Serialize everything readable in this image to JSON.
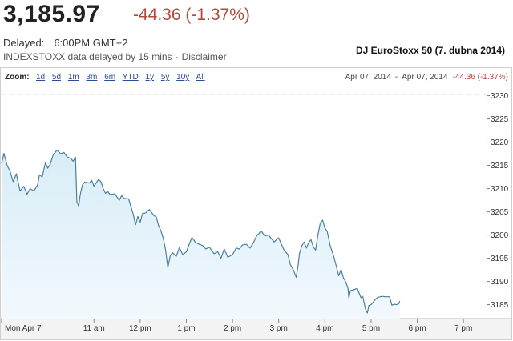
{
  "header": {
    "price": "3,185.97",
    "change": "-44.36 (-1.37%)",
    "delayed_label": "Delayed:",
    "delayed_time": "6:00PM GMT+2",
    "data_source": "INDEXSTOXX data delayed by 15 mins",
    "dash": "-",
    "disclaimer_link": "Disclaimer"
  },
  "chart_title": "DJ EuroStoxx 50 (7. dubna 2014)",
  "zoom": {
    "label": "Zoom:",
    "options": [
      "1d",
      "5d",
      "1m",
      "3m",
      "6m",
      "YTD",
      "1y",
      "5y",
      "10y",
      "All"
    ]
  },
  "range": {
    "start": "Apr 07, 2014",
    "separator": "-",
    "end": "Apr 07, 2014",
    "change": "-44.36 (-1.37%)"
  },
  "colors": {
    "line": "#4a7f9d",
    "area_top": "#d8ecf7",
    "area_bottom": "#f2f9fd",
    "reference_line": "#555555"
  },
  "chart_data": {
    "type": "area",
    "x_unit": "hour",
    "xlim": [
      9.0,
      19.5
    ],
    "ylim": [
      3182,
      3232
    ],
    "y_ticks": [
      3185,
      3190,
      3195,
      3200,
      3205,
      3210,
      3215,
      3220,
      3225,
      3230
    ],
    "x_ticks": [
      {
        "x": 9.0,
        "label": "Mon Apr 7"
      },
      {
        "x": 11.0,
        "label": "11 am"
      },
      {
        "x": 12.0,
        "label": "12 pm"
      },
      {
        "x": 13.0,
        "label": "1 pm"
      },
      {
        "x": 14.0,
        "label": "2 pm"
      },
      {
        "x": 15.0,
        "label": "3 pm"
      },
      {
        "x": 16.0,
        "label": "4 pm"
      },
      {
        "x": 17.0,
        "label": "5 pm"
      },
      {
        "x": 18.0,
        "label": "6 pm"
      },
      {
        "x": 19.0,
        "label": "7 pm"
      }
    ],
    "reference_line": 3230.33,
    "grid": false,
    "points": [
      [
        9.0,
        3215.4
      ],
      [
        9.05,
        3217.6
      ],
      [
        9.12,
        3215.0
      ],
      [
        9.18,
        3213.8
      ],
      [
        9.25,
        3211.5
      ],
      [
        9.32,
        3213.2
      ],
      [
        9.4,
        3209.5
      ],
      [
        9.48,
        3210.5
      ],
      [
        9.55,
        3208.8
      ],
      [
        9.62,
        3210.0
      ],
      [
        9.7,
        3209.5
      ],
      [
        9.78,
        3210.8
      ],
      [
        9.82,
        3213.0
      ],
      [
        9.88,
        3212.5
      ],
      [
        9.95,
        3215.6
      ],
      [
        10.0,
        3214.4
      ],
      [
        10.05,
        3215.2
      ],
      [
        10.12,
        3217.3
      ],
      [
        10.2,
        3218.3
      ],
      [
        10.28,
        3217.5
      ],
      [
        10.35,
        3217.8
      ],
      [
        10.42,
        3216.8
      ],
      [
        10.5,
        3216.5
      ],
      [
        10.55,
        3215.9
      ],
      [
        10.6,
        3216.8
      ],
      [
        10.63,
        3207.2
      ],
      [
        10.67,
        3206.2
      ],
      [
        10.7,
        3208.6
      ],
      [
        10.75,
        3210.8
      ],
      [
        10.8,
        3211.4
      ],
      [
        10.9,
        3211.2
      ],
      [
        10.95,
        3211.8
      ],
      [
        11.0,
        3210.5
      ],
      [
        11.1,
        3212.0
      ],
      [
        11.15,
        3211.5
      ],
      [
        11.2,
        3210.0
      ],
      [
        11.25,
        3209.0
      ],
      [
        11.3,
        3209.4
      ],
      [
        11.35,
        3208.7
      ],
      [
        11.45,
        3208.9
      ],
      [
        11.55,
        3207.5
      ],
      [
        11.6,
        3208.5
      ],
      [
        11.65,
        3207.9
      ],
      [
        11.75,
        3207.8
      ],
      [
        11.85,
        3204.5
      ],
      [
        11.9,
        3202.2
      ],
      [
        11.95,
        3204.0
      ],
      [
        12.0,
        3202.8
      ],
      [
        12.05,
        3204.6
      ],
      [
        12.12,
        3204.8
      ],
      [
        12.2,
        3205.5
      ],
      [
        12.3,
        3204.2
      ],
      [
        12.35,
        3203.9
      ],
      [
        12.4,
        3202.0
      ],
      [
        12.45,
        3200.9
      ],
      [
        12.5,
        3199.3
      ],
      [
        12.55,
        3196.9
      ],
      [
        12.6,
        3193.0
      ],
      [
        12.65,
        3195.5
      ],
      [
        12.7,
        3196.2
      ],
      [
        12.78,
        3195.4
      ],
      [
        12.85,
        3197.3
      ],
      [
        12.92,
        3195.8
      ],
      [
        13.0,
        3196.4
      ],
      [
        13.05,
        3197.7
      ],
      [
        13.12,
        3199.5
      ],
      [
        13.2,
        3198.4
      ],
      [
        13.28,
        3198.0
      ],
      [
        13.35,
        3197.8
      ],
      [
        13.42,
        3197.0
      ],
      [
        13.5,
        3197.4
      ],
      [
        13.6,
        3196.0
      ],
      [
        13.68,
        3196.4
      ],
      [
        13.75,
        3195.0
      ],
      [
        13.82,
        3197.0
      ],
      [
        13.9,
        3195.2
      ],
      [
        14.0,
        3195.8
      ],
      [
        14.08,
        3197.2
      ],
      [
        14.15,
        3197.0
      ],
      [
        14.22,
        3197.9
      ],
      [
        14.3,
        3198.0
      ],
      [
        14.38,
        3197.2
      ],
      [
        14.45,
        3198.3
      ],
      [
        14.52,
        3199.8
      ],
      [
        14.58,
        3200.4
      ],
      [
        14.62,
        3200.9
      ],
      [
        14.7,
        3199.8
      ],
      [
        14.78,
        3200.0
      ],
      [
        14.85,
        3199.1
      ],
      [
        14.9,
        3198.5
      ],
      [
        14.95,
        3199.0
      ],
      [
        15.0,
        3199.4
      ],
      [
        15.05,
        3198.2
      ],
      [
        15.12,
        3196.7
      ],
      [
        15.2,
        3195.8
      ],
      [
        15.25,
        3193.7
      ],
      [
        15.32,
        3192.4
      ],
      [
        15.38,
        3190.9
      ],
      [
        15.42,
        3193.5
      ],
      [
        15.45,
        3196.0
      ],
      [
        15.5,
        3197.7
      ],
      [
        15.55,
        3198.5
      ],
      [
        15.6,
        3197.2
      ],
      [
        15.65,
        3198.4
      ],
      [
        15.7,
        3199.0
      ],
      [
        15.75,
        3197.4
      ],
      [
        15.8,
        3196.8
      ],
      [
        15.85,
        3200.1
      ],
      [
        15.9,
        3202.6
      ],
      [
        15.95,
        3203.2
      ],
      [
        16.0,
        3201.5
      ],
      [
        16.05,
        3200.8
      ],
      [
        16.12,
        3197.5
      ],
      [
        16.18,
        3195.8
      ],
      [
        16.25,
        3193.2
      ],
      [
        16.3,
        3191.2
      ],
      [
        16.35,
        3192.6
      ],
      [
        16.4,
        3190.8
      ],
      [
        16.45,
        3189.9
      ],
      [
        16.5,
        3188.6
      ],
      [
        16.52,
        3186.4
      ],
      [
        16.55,
        3188.0
      ],
      [
        16.62,
        3188.2
      ],
      [
        16.7,
        3188.5
      ],
      [
        16.78,
        3186.5
      ],
      [
        16.82,
        3186.8
      ],
      [
        16.88,
        3184.0
      ],
      [
        16.92,
        3183.2
      ],
      [
        16.95,
        3184.8
      ],
      [
        17.0,
        3185.0
      ],
      [
        17.05,
        3185.6
      ],
      [
        17.1,
        3186.2
      ],
      [
        17.15,
        3186.6
      ],
      [
        17.2,
        3186.7
      ],
      [
        17.25,
        3186.8
      ],
      [
        17.3,
        3186.7
      ],
      [
        17.35,
        3186.7
      ],
      [
        17.4,
        3186.7
      ],
      [
        17.45,
        3184.9
      ],
      [
        17.5,
        3185.1
      ],
      [
        17.55,
        3185.0
      ],
      [
        17.6,
        3185.2
      ],
      [
        17.62,
        3185.8
      ]
    ]
  }
}
